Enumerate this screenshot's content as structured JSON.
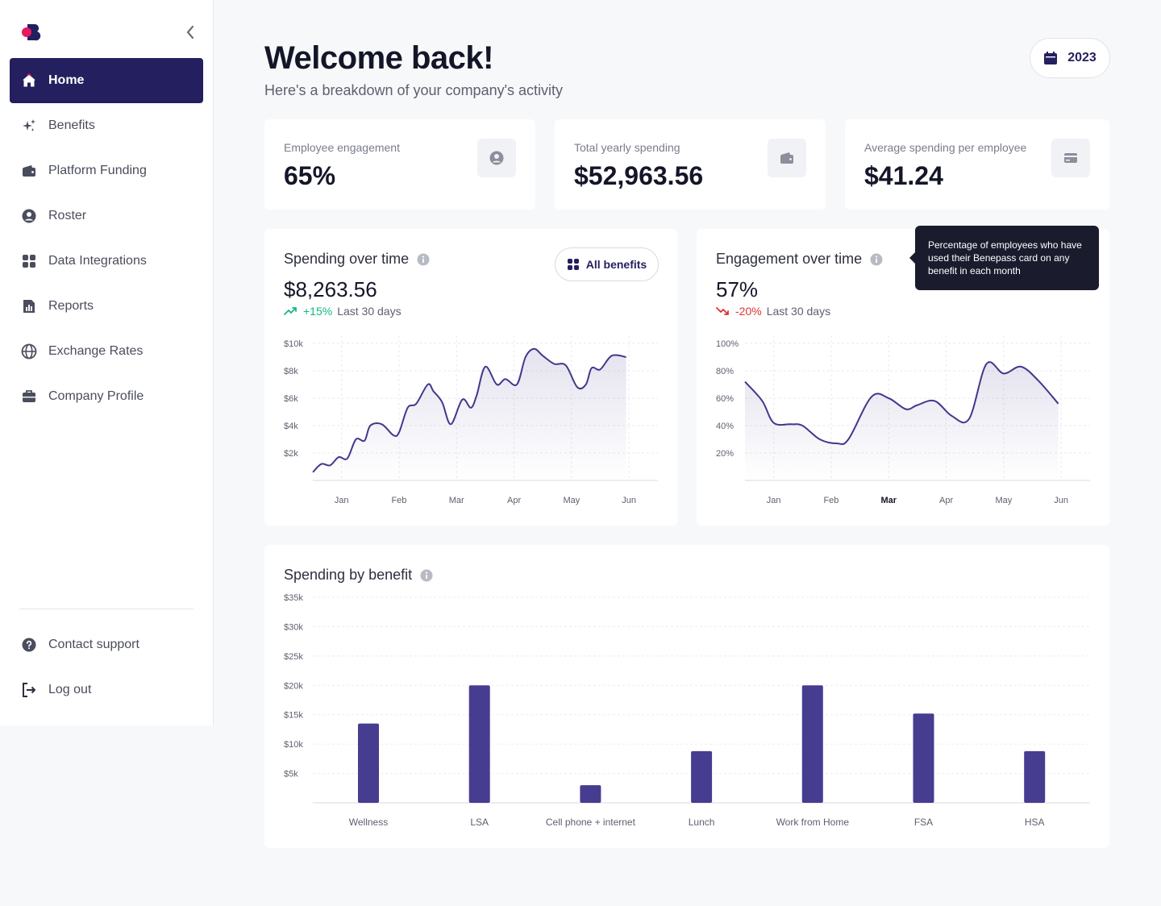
{
  "sidebar": {
    "items": [
      {
        "label": "Home",
        "icon": "home-icon"
      },
      {
        "label": "Benefits",
        "icon": "sparkles-icon"
      },
      {
        "label": "Platform Funding",
        "icon": "wallet-icon"
      },
      {
        "label": "Roster",
        "icon": "user-circle-icon"
      },
      {
        "label": "Data Integrations",
        "icon": "grid-icon"
      },
      {
        "label": "Reports",
        "icon": "report-icon"
      },
      {
        "label": "Exchange Rates",
        "icon": "globe-icon"
      },
      {
        "label": "Company Profile",
        "icon": "briefcase-icon"
      }
    ],
    "bottom": [
      {
        "label": "Contact support",
        "icon": "help-icon"
      },
      {
        "label": "Log out",
        "icon": "logout-icon"
      }
    ]
  },
  "header": {
    "title": "Welcome back!",
    "subtitle": "Here's a breakdown of your company's activity",
    "year": "2023"
  },
  "stats": [
    {
      "label": "Employee engagement",
      "value": "65%",
      "icon": "user-icon"
    },
    {
      "label": "Total yearly spending",
      "value": "$52,963.56",
      "icon": "wallet-icon"
    },
    {
      "label": "Average spending per employee",
      "value": "$41.24",
      "icon": "card-icon"
    }
  ],
  "spending": {
    "title": "Spending over time",
    "value": "$8,263.56",
    "change": "+15%",
    "period": "Last 30 days",
    "filter": "All benefits"
  },
  "engagement": {
    "title": "Engagement over time",
    "value": "57%",
    "change": "-20%",
    "period": "Last 30 days",
    "tooltip": "Percentage of employees who have used their Benepass card on any benefit in each month"
  },
  "benefit": {
    "title": "Spending by benefit"
  },
  "colors": {
    "primary": "#241f5e",
    "bar": "#463c90",
    "line": "#40388c",
    "positive": "#12b886",
    "negative": "#e03131"
  },
  "chart_data": [
    {
      "type": "area",
      "title": "Spending over time",
      "categories": [
        "Jan",
        "Feb",
        "Mar",
        "Apr",
        "May",
        "Jun"
      ],
      "y_ticks": [
        "$2k",
        "$4k",
        "$6k",
        "$8k",
        "$10k"
      ],
      "ylim": [
        0,
        10000
      ],
      "x": [
        0,
        0.15,
        0.3,
        0.45,
        0.6,
        0.75,
        0.9,
        1.0,
        1.2,
        1.4,
        1.5,
        1.65,
        1.8,
        2.0,
        2.1,
        2.25,
        2.4,
        2.6,
        2.75,
        2.85,
        3.0,
        3.2,
        3.35,
        3.55,
        3.7,
        3.85,
        4.0,
        4.2,
        4.4,
        4.6,
        4.75,
        4.85,
        5.0,
        5.2,
        5.45
      ],
      "values": [
        600,
        1200,
        1100,
        1700,
        1600,
        3000,
        2900,
        4000,
        4100,
        3300,
        3500,
        5300,
        5600,
        7000,
        6500,
        5700,
        4100,
        5900,
        5300,
        6200,
        8300,
        7000,
        7400,
        7000,
        9000,
        9600,
        9100,
        8500,
        8400,
        6800,
        7000,
        8200,
        8100,
        9100,
        9000
      ]
    },
    {
      "type": "area",
      "title": "Engagement over time",
      "categories": [
        "Jan",
        "Feb",
        "Mar",
        "Apr",
        "May",
        "Jun"
      ],
      "y_ticks": [
        "20%",
        "40%",
        "60%",
        "80%",
        "100%"
      ],
      "ylim": [
        0,
        100
      ],
      "highlight": "Mar",
      "x": [
        0,
        0.3,
        0.5,
        0.8,
        1.0,
        1.3,
        1.6,
        1.8,
        2.2,
        2.5,
        2.8,
        3.0,
        3.3,
        3.6,
        3.9,
        4.2,
        4.5,
        4.8,
        5.1,
        5.45
      ],
      "values": [
        72,
        58,
        42,
        41,
        40,
        30,
        27,
        30,
        61,
        60,
        52,
        55,
        58,
        47,
        45,
        85,
        78,
        83,
        73,
        56
      ]
    },
    {
      "type": "bar",
      "title": "Spending by benefit",
      "categories": [
        "Wellness",
        "LSA",
        "Cell phone + internet",
        "Lunch",
        "Work from Home",
        "FSA",
        "HSA"
      ],
      "values": [
        13500,
        20000,
        3000,
        8800,
        20000,
        15200,
        8800
      ],
      "y_ticks": [
        "$5k",
        "$10k",
        "$15k",
        "$20k",
        "$25k",
        "$30k",
        "$35k"
      ],
      "ylim": [
        0,
        35000
      ]
    }
  ]
}
